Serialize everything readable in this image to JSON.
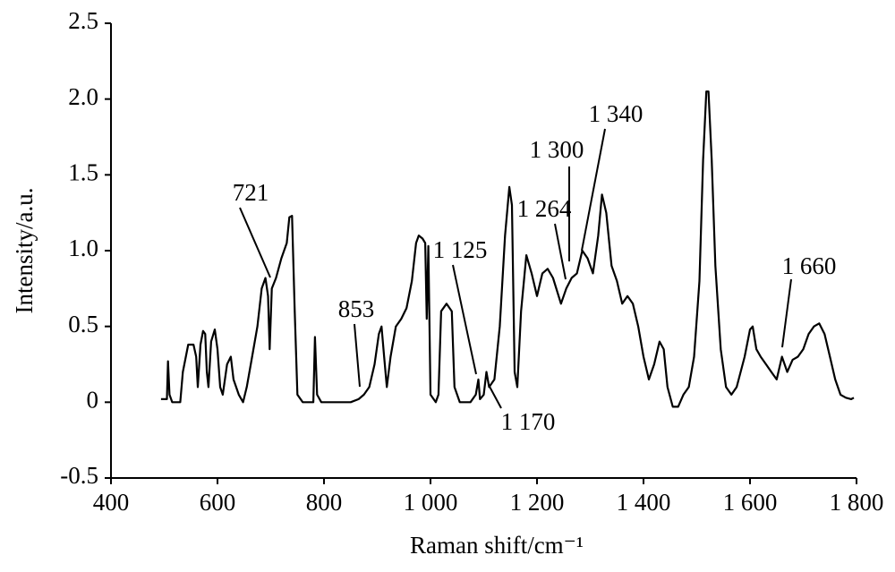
{
  "chart_data": {
    "type": "line",
    "x_label": "Raman shift/cm⁻¹",
    "y_label": "Intensity/a.u.",
    "xlim": [
      400,
      1800
    ],
    "ylim": [
      -0.5,
      2.5
    ],
    "xticks": [
      400,
      600,
      800,
      {
        "value": 1000,
        "label": "1 000"
      },
      {
        "value": 1200,
        "label": "1 200"
      },
      {
        "value": 1400,
        "label": "1 400"
      },
      {
        "value": 1600,
        "label": "1 600"
      },
      {
        "value": 1800,
        "label": "1 800"
      }
    ],
    "yticks": [
      -0.5,
      0,
      0.5,
      {
        "value": 1,
        "label": "1.0"
      },
      1.5,
      {
        "value": 2,
        "label": "2.0"
      },
      2.5
    ],
    "annotations": [
      "721",
      "853",
      "1 125",
      "1 170",
      "1 264",
      "1 300",
      "1 340",
      "1 660"
    ],
    "series": [
      {
        "color": "#000000",
        "x": [
          494,
          505,
          507,
          510,
          515,
          530,
          535,
          545,
          555,
          560,
          563,
          568,
          573,
          577,
          580,
          583,
          588,
          595,
          600,
          605,
          610,
          618,
          625,
          630,
          640,
          648,
          655,
          665,
          675,
          683,
          690,
          695,
          698,
          702,
          710,
          720,
          730,
          735,
          740,
          745,
          750,
          760,
          780,
          783,
          787,
          795,
          820,
          850,
          865,
          875,
          885,
          895,
          903,
          908,
          913,
          918,
          925,
          935,
          945,
          955,
          965,
          973,
          978,
          985,
          990,
          993,
          996,
          1000,
          1010,
          1015,
          1020,
          1030,
          1040,
          1045,
          1055,
          1075,
          1085,
          1090,
          1093,
          1100,
          1105,
          1110,
          1120,
          1130,
          1140,
          1148,
          1153,
          1158,
          1163,
          1170,
          1180,
          1190,
          1200,
          1210,
          1220,
          1230,
          1245,
          1255,
          1265,
          1275,
          1285,
          1295,
          1305,
          1315,
          1322,
          1330,
          1340,
          1350,
          1360,
          1370,
          1380,
          1390,
          1400,
          1410,
          1420,
          1430,
          1438,
          1445,
          1455,
          1465,
          1475,
          1485,
          1495,
          1505,
          1512,
          1518,
          1522,
          1528,
          1535,
          1545,
          1555,
          1565,
          1575,
          1590,
          1600,
          1605,
          1612,
          1620,
          1630,
          1640,
          1650,
          1660,
          1670,
          1680,
          1690,
          1700,
          1710,
          1720,
          1730,
          1740,
          1750,
          1760,
          1770,
          1780,
          1790,
          1795
        ],
        "values": [
          0.02,
          0.02,
          0.27,
          0.05,
          0,
          0,
          0.2,
          0.38,
          0.38,
          0.3,
          0.1,
          0.38,
          0.47,
          0.45,
          0.2,
          0.1,
          0.4,
          0.48,
          0.35,
          0.1,
          0.05,
          0.25,
          0.3,
          0.15,
          0.05,
          0,
          0.1,
          0.3,
          0.5,
          0.75,
          0.82,
          0.7,
          0.35,
          0.75,
          0.82,
          0.95,
          1.05,
          1.22,
          1.23,
          0.6,
          0.05,
          0,
          0,
          0.43,
          0.05,
          0,
          0,
          0,
          0.02,
          0.05,
          0.1,
          0.25,
          0.45,
          0.5,
          0.3,
          0.1,
          0.3,
          0.5,
          0.55,
          0.62,
          0.8,
          1.05,
          1.1,
          1.08,
          1.05,
          0.55,
          1.03,
          0.05,
          0,
          0.05,
          0.6,
          0.65,
          0.6,
          0.1,
          0,
          0,
          0.05,
          0.15,
          0.02,
          0.05,
          0.2,
          0.1,
          0.15,
          0.5,
          1.1,
          1.42,
          1.3,
          0.2,
          0.1,
          0.6,
          0.97,
          0.85,
          0.7,
          0.85,
          0.88,
          0.82,
          0.65,
          0.75,
          0.82,
          0.85,
          1,
          0.95,
          0.85,
          1.1,
          1.37,
          1.25,
          0.9,
          0.8,
          0.65,
          0.7,
          0.65,
          0.5,
          0.3,
          0.15,
          0.25,
          0.4,
          0.35,
          0.1,
          -0.03,
          -0.03,
          0.05,
          0.1,
          0.3,
          0.8,
          1.6,
          2.05,
          2.05,
          1.6,
          0.9,
          0.35,
          0.1,
          0.05,
          0.1,
          0.3,
          0.48,
          0.5,
          0.35,
          0.3,
          0.25,
          0.2,
          0.15,
          0.3,
          0.2,
          0.28,
          0.3,
          0.35,
          0.45,
          0.5,
          0.52,
          0.45,
          0.3,
          0.15,
          0.05,
          0.03,
          0.02,
          0.03
        ]
      }
    ]
  }
}
